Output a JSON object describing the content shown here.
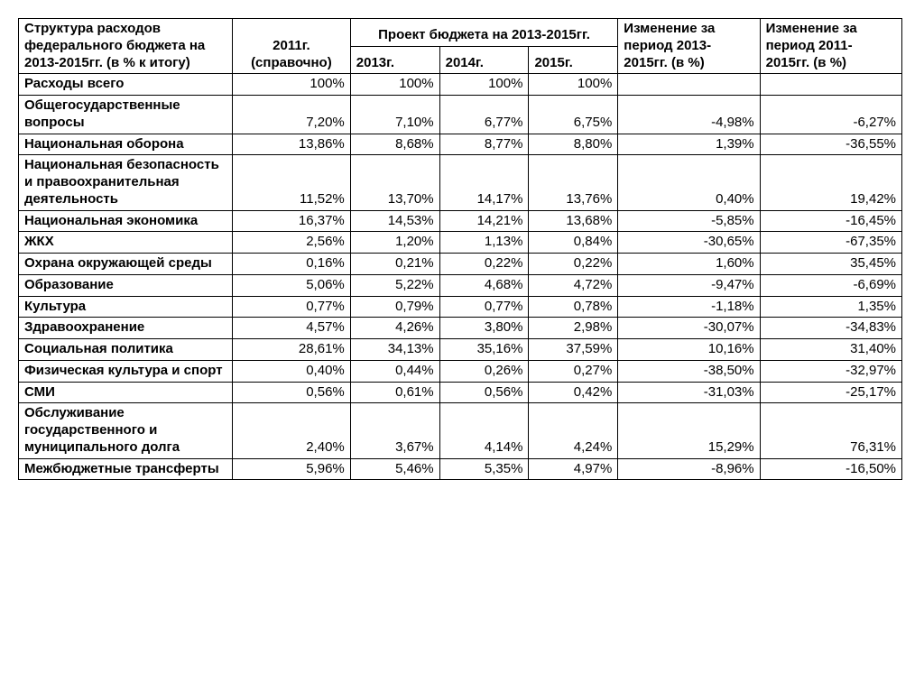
{
  "table": {
    "background_color": "#ffffff",
    "border_color": "#000000",
    "font_family": "Arial",
    "header_fontsize": 15,
    "cell_fontsize": 15,
    "columns": {
      "label": "Структура расходов федерального бюджета на 2013-2015гг. (в % к итогу)",
      "ref": "2011г. (справочно)",
      "proj_group": "Проект бюджета на 2013-2015гг.",
      "y2013": "2013г.",
      "y2014": "2014г.",
      "y2015": "2015г.",
      "chg1315": "Изменение за период 2013-2015гг. (в %)",
      "chg1115": "Изменение за период 2011-2015гг. (в %)"
    },
    "rows": [
      {
        "label": "Расходы всего",
        "ref": "100%",
        "y2013": "100%",
        "y2014": "100%",
        "y2015": "100%",
        "chg1315": "",
        "chg1115": ""
      },
      {
        "label": "Общегосударственные вопросы",
        "ref": "7,20%",
        "y2013": "7,10%",
        "y2014": "6,77%",
        "y2015": "6,75%",
        "chg1315": "-4,98%",
        "chg1115": "-6,27%"
      },
      {
        "label": "Национальная оборона",
        "ref": "13,86%",
        "y2013": "8,68%",
        "y2014": "8,77%",
        "y2015": "8,80%",
        "chg1315": "1,39%",
        "chg1115": "-36,55%"
      },
      {
        "label": "Национальная безопасность и правоохранительная деятельность",
        "ref": "11,52%",
        "y2013": "13,70%",
        "y2014": "14,17%",
        "y2015": "13,76%",
        "chg1315": "0,40%",
        "chg1115": "19,42%"
      },
      {
        "label": "Национальная экономика",
        "ref": "16,37%",
        "y2013": "14,53%",
        "y2014": "14,21%",
        "y2015": "13,68%",
        "chg1315": "-5,85%",
        "chg1115": "-16,45%"
      },
      {
        "label": "ЖКХ",
        "ref": "2,56%",
        "y2013": "1,20%",
        "y2014": "1,13%",
        "y2015": "0,84%",
        "chg1315": "-30,65%",
        "chg1115": "-67,35%"
      },
      {
        "label": "Охрана окружающей среды",
        "ref": "0,16%",
        "y2013": "0,21%",
        "y2014": "0,22%",
        "y2015": "0,22%",
        "chg1315": "1,60%",
        "chg1115": "35,45%"
      },
      {
        "label": "Образование",
        "ref": "5,06%",
        "y2013": "5,22%",
        "y2014": "4,68%",
        "y2015": "4,72%",
        "chg1315": "-9,47%",
        "chg1115": "-6,69%"
      },
      {
        "label": "Культура",
        "ref": "0,77%",
        "y2013": "0,79%",
        "y2014": "0,77%",
        "y2015": "0,78%",
        "chg1315": "-1,18%",
        "chg1115": "1,35%"
      },
      {
        "label": "Здравоохранение",
        "ref": "4,57%",
        "y2013": "4,26%",
        "y2014": "3,80%",
        "y2015": "2,98%",
        "chg1315": "-30,07%",
        "chg1115": "-34,83%"
      },
      {
        "label": "Социальная политика",
        "ref": "28,61%",
        "y2013": "34,13%",
        "y2014": "35,16%",
        "y2015": "37,59%",
        "chg1315": "10,16%",
        "chg1115": "31,40%"
      },
      {
        "label": "Физическая культура и спорт",
        "ref": "0,40%",
        "y2013": "0,44%",
        "y2014": "0,26%",
        "y2015": "0,27%",
        "chg1315": "-38,50%",
        "chg1115": "-32,97%"
      },
      {
        "label": "СМИ",
        "ref": "0,56%",
        "y2013": "0,61%",
        "y2014": "0,56%",
        "y2015": "0,42%",
        "chg1315": "-31,03%",
        "chg1115": "-25,17%"
      },
      {
        "label": "Обслуживание государственного и муниципального долга",
        "ref": "2,40%",
        "y2013": "3,67%",
        "y2014": "4,14%",
        "y2015": "4,24%",
        "chg1315": "15,29%",
        "chg1115": "76,31%"
      },
      {
        "label": "Межбюджетные трансферты",
        "ref": "5,96%",
        "y2013": "5,46%",
        "y2014": "5,35%",
        "y2015": "4,97%",
        "chg1315": "-8,96%",
        "chg1115": "-16,50%"
      }
    ]
  }
}
